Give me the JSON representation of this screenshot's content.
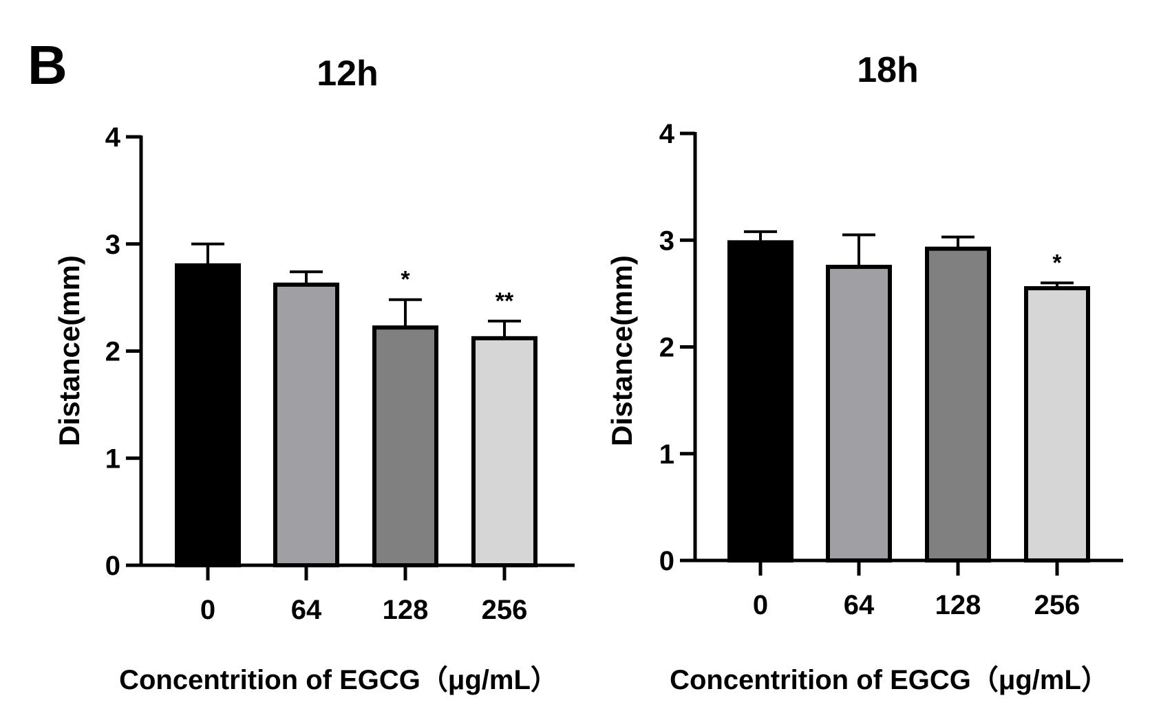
{
  "figure": {
    "panel_label": "B"
  },
  "chart_data": [
    {
      "type": "bar",
      "title": "12h",
      "xlabel": "Concentrition of EGCG（μg/mL）",
      "ylabel": "Distance(mm)",
      "ylim": [
        0,
        4
      ],
      "yticks": [
        0,
        1,
        2,
        3,
        4
      ],
      "categories": [
        "0",
        "64",
        "128",
        "256"
      ],
      "values": [
        2.8,
        2.62,
        2.22,
        2.12
      ],
      "errors": [
        0.2,
        0.12,
        0.26,
        0.16
      ],
      "significance": [
        "",
        "",
        "*",
        "**"
      ],
      "colors": [
        "#000000",
        "#a0a0a4",
        "#808080",
        "#d6d6d6"
      ]
    },
    {
      "type": "bar",
      "title": "18h",
      "xlabel": "Concentrition of EGCG（μg/mL）",
      "ylabel": "Distance(mm)",
      "ylim": [
        0,
        4
      ],
      "yticks": [
        0,
        1,
        2,
        3,
        4
      ],
      "categories": [
        "0",
        "64",
        "128",
        "256"
      ],
      "values": [
        2.98,
        2.75,
        2.92,
        2.55
      ],
      "errors": [
        0.1,
        0.3,
        0.11,
        0.05
      ],
      "significance": [
        "",
        "",
        "",
        "*"
      ],
      "colors": [
        "#000000",
        "#a0a0a4",
        "#808080",
        "#d6d6d6"
      ]
    }
  ]
}
